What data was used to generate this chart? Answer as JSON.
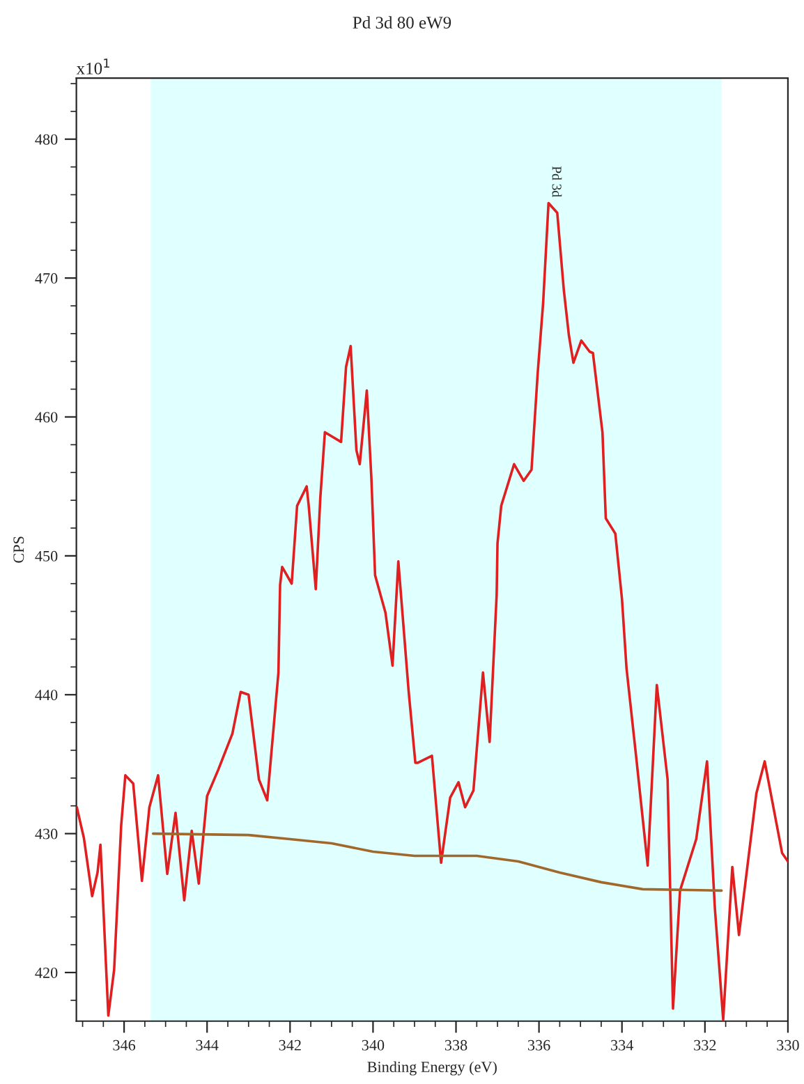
{
  "chart_data": {
    "type": "line",
    "title": "Pd 3d 80 eW9",
    "xlabel": "Binding Energy (eV)",
    "ylabel": "CPS",
    "annotations": [
      "x10$^{1}$",
      {
        "text": "Pd 3d",
        "x": 335.6,
        "y": 475.4
      }
    ],
    "xlim": [
      347.15,
      330
    ],
    "ylim": [
      416.5,
      484.4
    ],
    "xticks": [
      346,
      {
        "value": 345.5,
        "label": null
      },
      {
        "value": 345,
        "label": null
      },
      {
        "value": 344.5,
        "label": null
      },
      344,
      {
        "value": 343.5,
        "label": null
      },
      {
        "value": 343,
        "label": null
      },
      {
        "value": 342.5,
        "label": null
      },
      342,
      {
        "value": 341.5,
        "label": null
      },
      {
        "value": 341,
        "label": null
      },
      {
        "value": 340.5,
        "label": null
      },
      340,
      {
        "value": 339.5,
        "label": null
      },
      {
        "value": 339,
        "label": null
      },
      {
        "value": 338.5,
        "label": null
      },
      338,
      {
        "value": 337.5,
        "label": null
      },
      {
        "value": 337,
        "label": null
      },
      {
        "value": 336.5,
        "label": null
      },
      336,
      {
        "value": 335.5,
        "label": null
      },
      {
        "value": 335,
        "label": null
      },
      {
        "value": 334.5,
        "label": null
      },
      334,
      {
        "value": 333.5,
        "label": null
      },
      {
        "value": 333,
        "label": null
      },
      {
        "value": 332.5,
        "label": null
      },
      332,
      {
        "value": 331.5,
        "label": null
      },
      {
        "value": 331,
        "label": null
      },
      {
        "value": 330.5,
        "label": null
      },
      330,
      {
        "value": 346.5,
        "label": null
      },
      {
        "value": 347,
        "label": null
      }
    ],
    "yticks": [
      420,
      {
        "value": 418,
        "label": null
      },
      {
        "value": 422,
        "label": null
      },
      {
        "value": 424,
        "label": null
      },
      {
        "value": 426,
        "label": null
      },
      {
        "value": 428,
        "label": null
      },
      430,
      {
        "value": 432,
        "label": null
      },
      {
        "value": 434,
        "label": null
      },
      {
        "value": 436,
        "label": null
      },
      {
        "value": 438,
        "label": null
      },
      440,
      {
        "value": 442,
        "label": null
      },
      {
        "value": 444,
        "label": null
      },
      {
        "value": 446,
        "label": null
      },
      {
        "value": 448,
        "label": null
      },
      450,
      {
        "value": 452,
        "label": null
      },
      {
        "value": 454,
        "label": null
      },
      {
        "value": 456,
        "label": null
      },
      {
        "value": 458,
        "label": null
      },
      460,
      {
        "value": 462,
        "label": null
      },
      {
        "value": 464,
        "label": null
      },
      {
        "value": 466,
        "label": null
      },
      {
        "value": 468,
        "label": null
      },
      470,
      {
        "value": 472,
        "label": null
      },
      {
        "value": 474,
        "label": null
      },
      {
        "value": 476,
        "label": null
      },
      {
        "value": 478,
        "label": null
      },
      480,
      {
        "value": 482,
        "label": null
      },
      {
        "value": 484,
        "label": null
      }
    ],
    "grid": false,
    "marker": "none",
    "line_style": "solid",
    "bands": [
      {
        "axis": "x",
        "from": 345.36,
        "to": 331.6,
        "color": "#e0ffff"
      }
    ],
    "series": [
      {
        "color": "#e02020",
        "x": [
          347.14,
          346.97,
          346.77,
          346.64,
          346.57,
          346.38,
          346.24,
          346.07,
          345.97,
          345.78,
          345.57,
          345.39,
          345.18,
          344.96,
          344.76,
          344.55,
          344.37,
          344.2,
          344.0,
          343.73,
          343.39,
          343.19,
          343.0,
          342.75,
          342.55,
          342.28,
          342.24,
          342.19,
          341.96,
          341.83,
          341.6,
          341.55,
          341.38,
          341.27,
          341.16,
          340.77,
          340.65,
          340.54,
          340.4,
          340.32,
          340.15,
          340.04,
          339.95,
          339.7,
          339.53,
          339.39,
          339.14,
          338.98,
          338.92,
          338.58,
          338.36,
          338.14,
          337.94,
          337.78,
          337.58,
          337.35,
          337.19,
          337.02,
          337.0,
          336.91,
          336.6,
          336.37,
          336.18,
          336.03,
          335.9,
          335.77,
          335.56,
          335.4,
          335.28,
          335.17,
          334.98,
          334.78,
          334.7,
          334.47,
          334.39,
          334.16,
          334.0,
          333.89,
          333.66,
          333.38,
          333.16,
          332.9,
          332.77,
          332.6,
          332.21,
          331.95,
          331.76,
          331.56,
          331.34,
          331.18,
          330.76,
          330.56,
          330.14,
          330.0
        ],
        "values": [
          431.9,
          429.7,
          425.5,
          427.2,
          429.2,
          416.9,
          420.2,
          430.6,
          434.2,
          433.6,
          426.6,
          431.9,
          434.2,
          427.1,
          431.5,
          425.2,
          430.2,
          426.4,
          432.7,
          434.6,
          437.2,
          440.2,
          440.0,
          433.9,
          432.4,
          441.6,
          447.9,
          449.2,
          448.0,
          453.6,
          455.0,
          453.6,
          447.6,
          454.2,
          458.9,
          458.2,
          463.6,
          465.1,
          457.6,
          456.6,
          461.9,
          455.6,
          448.6,
          445.9,
          442.1,
          449.6,
          440.2,
          435.1,
          435.1,
          435.6,
          427.9,
          432.6,
          433.7,
          431.9,
          433.1,
          441.6,
          436.6,
          447.2,
          450.9,
          453.6,
          456.6,
          455.4,
          456.2,
          463.2,
          468.2,
          475.4,
          474.7,
          469.1,
          465.9,
          463.9,
          465.5,
          464.7,
          464.6,
          458.9,
          452.7,
          451.6,
          446.9,
          441.9,
          435.6,
          427.7,
          440.7,
          433.9,
          417.4,
          425.9,
          429.6,
          435.2,
          424.6,
          416.6,
          427.6,
          422.7,
          432.9,
          435.2,
          428.6,
          428.0
        ]
      },
      {
        "color": "#a0682a",
        "x": [
          345.3,
          343.0,
          342.0,
          341.0,
          340.0,
          339.0,
          337.5,
          336.5,
          335.5,
          334.5,
          333.5,
          331.6
        ],
        "values": [
          430.0,
          429.9,
          429.6,
          429.3,
          428.7,
          428.4,
          428.4,
          428.0,
          427.2,
          426.5,
          426.0,
          425.9
        ]
      }
    ]
  }
}
